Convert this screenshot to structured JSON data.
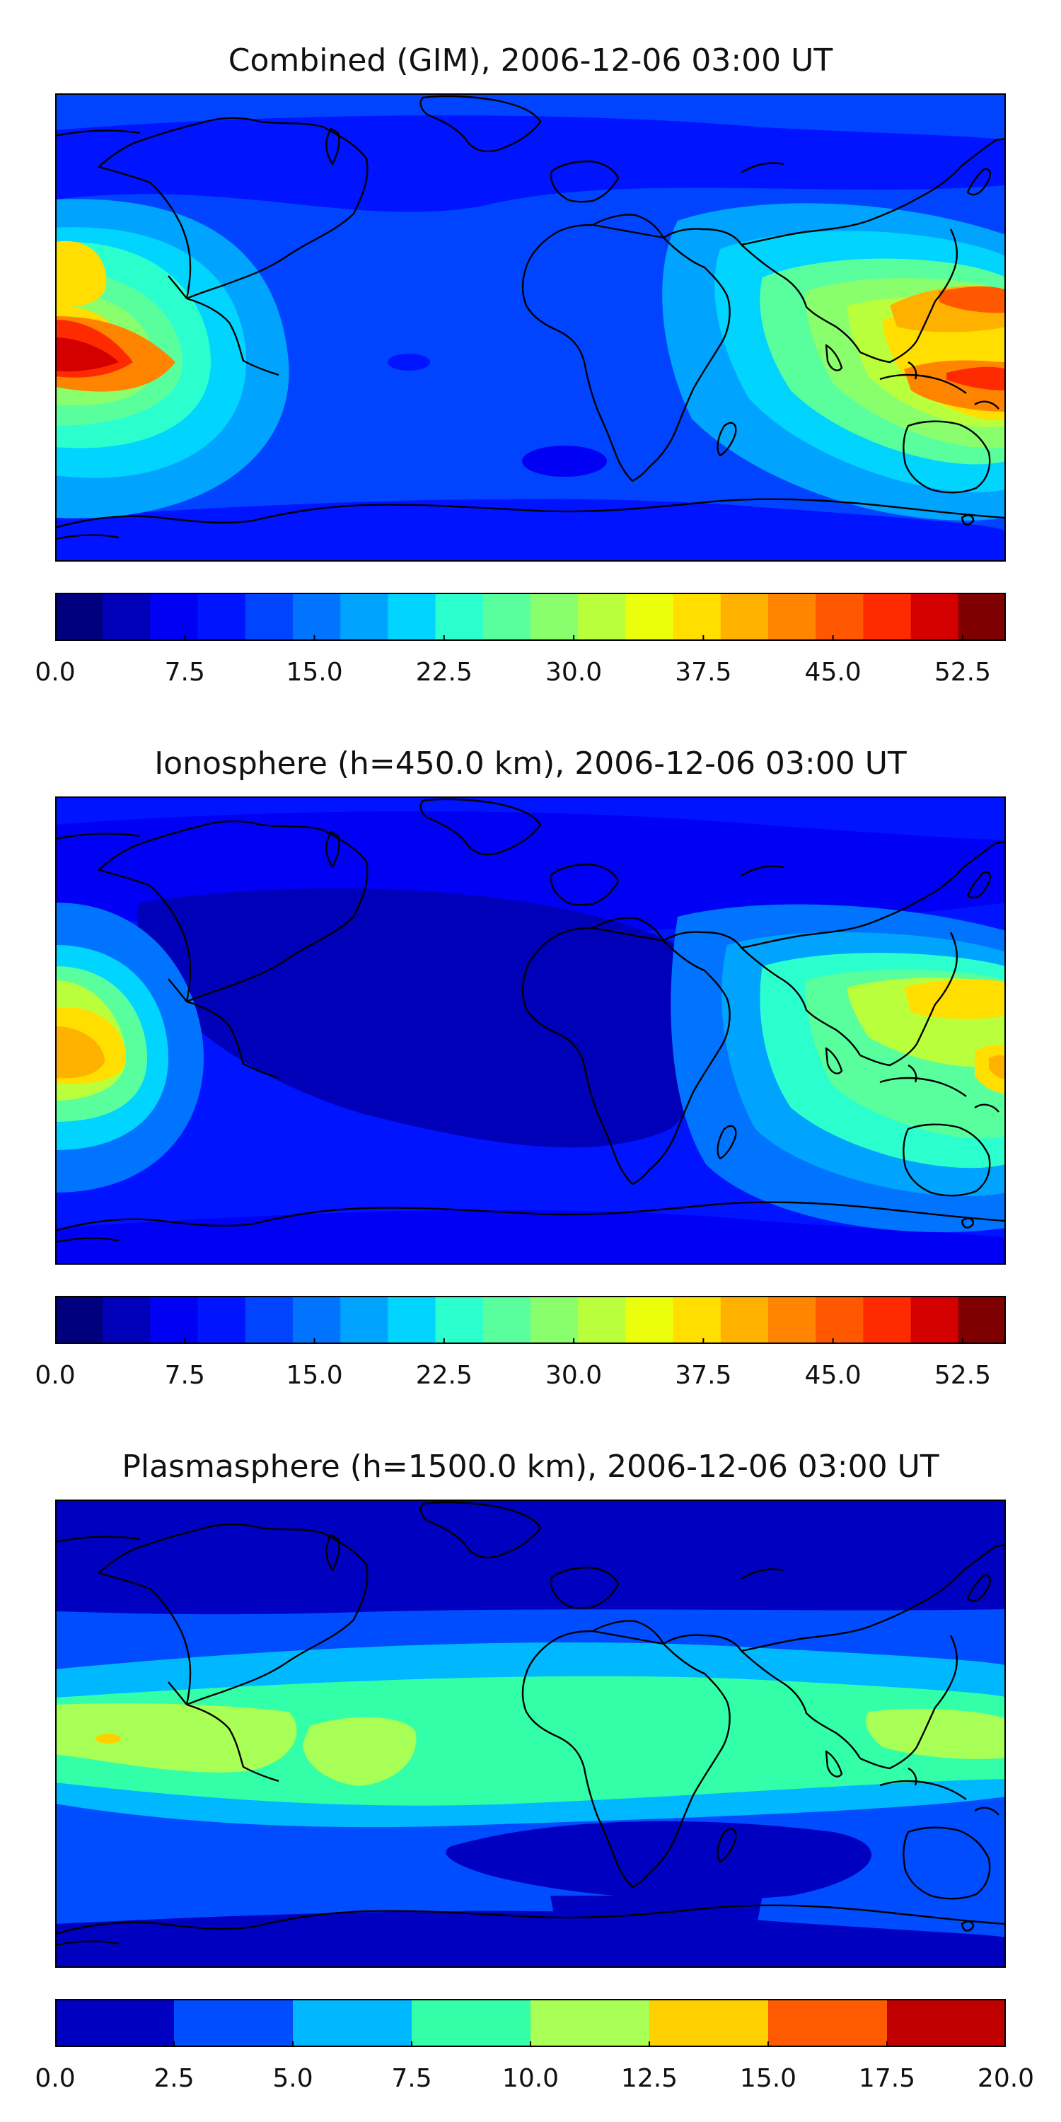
{
  "panels": [
    {
      "title": "Combined (GIM), 2006-12-06 03:00 UT",
      "colormap": [
        "#00007f",
        "#0000b8",
        "#0000f5",
        "#0014ff",
        "#0044ff",
        "#0074ff",
        "#00a4ff",
        "#00d4ff",
        "#2affcd",
        "#5aff9d",
        "#8aff6d",
        "#baff3c",
        "#ebff0c",
        "#ffde00",
        "#ffb100",
        "#ff8400",
        "#ff5800",
        "#ff2b00",
        "#d40000",
        "#7f0000"
      ],
      "colorbar_ticks": [
        "0.0",
        "7.5",
        "15.0",
        "22.5",
        "30.0",
        "37.5",
        "45.0",
        "52.5"
      ],
      "tick_values": [
        0,
        7.5,
        15,
        22.5,
        30,
        37.5,
        45,
        52.5
      ],
      "range": [
        0,
        55
      ],
      "levels": 22
    },
    {
      "title": "Ionosphere  (h=450.0 km), 2006-12-06 03:00 UT",
      "colormap": [
        "#00007f",
        "#0000b8",
        "#0000f5",
        "#0014ff",
        "#0044ff",
        "#0074ff",
        "#00a4ff",
        "#00d4ff",
        "#2affcd",
        "#5aff9d",
        "#8aff6d",
        "#baff3c",
        "#ebff0c",
        "#ffde00",
        "#ffb100",
        "#ff8400",
        "#ff5800",
        "#ff2b00",
        "#d40000",
        "#7f0000"
      ],
      "colorbar_ticks": [
        "0.0",
        "7.5",
        "15.0",
        "22.5",
        "30.0",
        "37.5",
        "45.0",
        "52.5"
      ],
      "tick_values": [
        0,
        7.5,
        15,
        22.5,
        30,
        37.5,
        45,
        52.5
      ],
      "range": [
        0,
        55
      ],
      "levels": 22
    },
    {
      "title": "Plasmasphere (h=1500.0 km), 2006-12-06 03:00 UT",
      "colormap": [
        "#0000c0",
        "#004cff",
        "#00b8ff",
        "#33ffa8",
        "#a8ff55",
        "#ffd000",
        "#ff5a00",
        "#c00000"
      ],
      "colorbar_ticks": [
        "0.0",
        "2.5",
        "5.0",
        "7.5",
        "10.0",
        "12.5",
        "15.0",
        "17.5",
        "20.0"
      ],
      "tick_values": [
        0,
        2.5,
        5,
        7.5,
        10,
        12.5,
        15,
        17.5,
        20
      ],
      "range": [
        0,
        20
      ],
      "levels": 8
    }
  ]
}
